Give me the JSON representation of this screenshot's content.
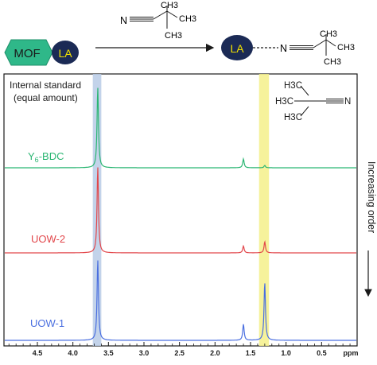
{
  "scheme": {
    "mof_label": "MOF",
    "la_label": "LA",
    "la_bound_label": "LA",
    "reagent": {
      "ch3_top": "CH3",
      "ch3_right": "CH3",
      "ch3_bottom": "CH3",
      "nitrile_n": "N"
    },
    "product": {
      "nitrile_n": "N",
      "ch3_top": "CH3",
      "ch3_right": "CH3",
      "ch3_bottom": "CH3"
    },
    "colors": {
      "mof_fill": "#2fb889",
      "la_fill": "#1b2a55",
      "la_text": "#f2e200"
    }
  },
  "chart_data": {
    "type": "line",
    "x_axis": {
      "unit_label": "ppm",
      "ticks": [
        "4.5",
        "4.0",
        "3.5",
        "3.0",
        "2.5",
        "2.0",
        "1.5",
        "1.0",
        "0.5"
      ],
      "tick_values": [
        4.5,
        4.0,
        3.5,
        3.0,
        2.5,
        2.0,
        1.5,
        1.0,
        0.5
      ],
      "xlim": [
        4.97,
        0.0
      ],
      "reversed": true
    },
    "annotations": {
      "internal_standard_line1": "Internal standard",
      "internal_standard_line2": "(equal amount)",
      "increasing_order": "Increasing order",
      "structure": {
        "h3c_top": "H3C",
        "h3c_mid": "H3C",
        "h3c_bottom": "H3C",
        "nitrile_n": "N"
      }
    },
    "highlights": [
      {
        "name": "internal-standard-band",
        "x_range": [
          3.6,
          3.72
        ],
        "color": "#b9cbe6"
      },
      {
        "name": "tert-butyl-band",
        "x_range": [
          1.24,
          1.38
        ],
        "color": "#f4f08a"
      }
    ],
    "series": [
      {
        "name": "Y6-BDC",
        "color": "#2bb673",
        "peaks": [
          {
            "x": 3.65,
            "height": 1.0
          },
          {
            "x": 1.6,
            "height": 0.11
          },
          {
            "x": 1.3,
            "height": 0.03
          }
        ]
      },
      {
        "name": "UOW-2",
        "color": "#e2474b",
        "peaks": [
          {
            "x": 3.65,
            "height": 1.0
          },
          {
            "x": 1.6,
            "height": 0.08
          },
          {
            "x": 1.3,
            "height": 0.13
          }
        ]
      },
      {
        "name": "UOW-1",
        "color": "#4a6fe0",
        "peaks": [
          {
            "x": 3.65,
            "height": 1.0
          },
          {
            "x": 1.6,
            "height": 0.2
          },
          {
            "x": 1.3,
            "height": 0.72
          }
        ]
      }
    ],
    "series_labels": {
      "y6_main": "Y",
      "y6_sub": "6",
      "y6_rest": "-BDC",
      "uow2": "UOW-2",
      "uow1": "UOW-1"
    }
  }
}
